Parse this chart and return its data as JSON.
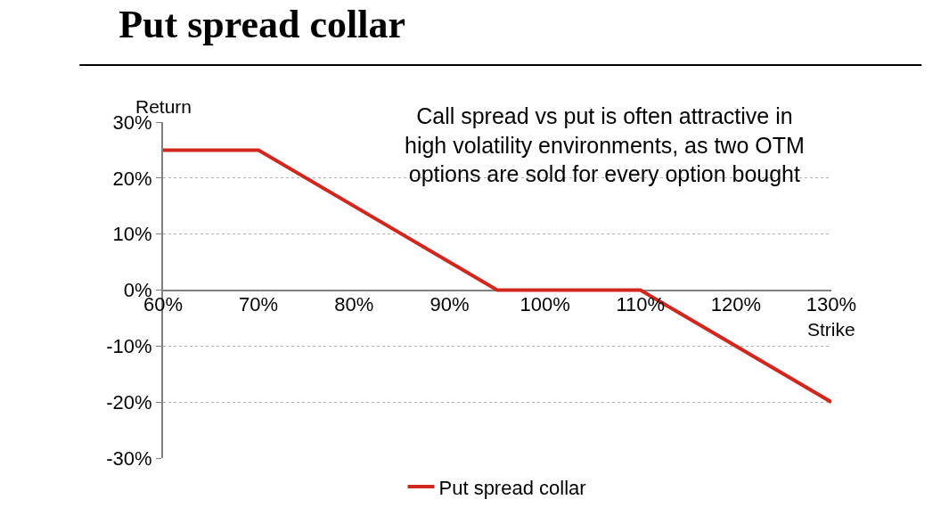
{
  "chart_data": {
    "type": "line",
    "title": "Put spread collar",
    "xlabel": "Strike",
    "ylabel": "Return",
    "annotations": [
      "Call spread vs put is often attractive in\nhigh volatility environments, as two OTM\noptions are sold for every option bought"
    ],
    "x": [
      60,
      70,
      95,
      110,
      130
    ],
    "series": [
      {
        "name": "Put spread collar",
        "color": "#d0281e",
        "values": [
          25,
          25,
          0,
          0,
          -20
        ]
      }
    ],
    "xlim": [
      60,
      130
    ],
    "xticks": [
      {
        "value": 60,
        "label": "60%"
      },
      {
        "value": 70,
        "label": "70%"
      },
      {
        "value": 80,
        "label": "80%"
      },
      {
        "value": 90,
        "label": "90%"
      },
      {
        "value": 100,
        "label": "100%"
      },
      {
        "value": 110,
        "label": "110%"
      },
      {
        "value": 120,
        "label": "120%"
      },
      {
        "value": 130,
        "label": "130%"
      }
    ],
    "ylim": [
      -30,
      30
    ],
    "yticks": [
      {
        "value": -30,
        "label": "-30%"
      },
      {
        "value": -20,
        "label": "-20%"
      },
      {
        "value": -10,
        "label": "-10%"
      },
      {
        "value": 0,
        "label": "0%"
      },
      {
        "value": 10,
        "label": "10%"
      },
      {
        "value": 20,
        "label": "20%"
      },
      {
        "value": 30,
        "label": "30%"
      }
    ],
    "grid": "y",
    "legend": "bottom",
    "marker": "none",
    "line_style": "solid"
  }
}
